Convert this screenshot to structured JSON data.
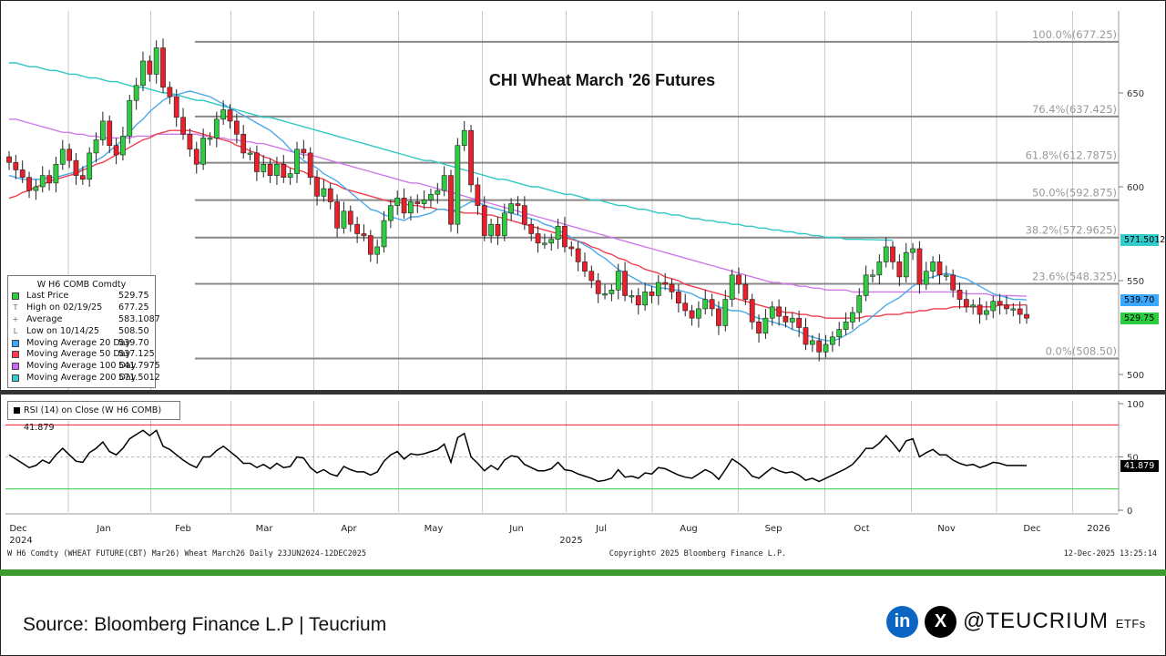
{
  "chart_data": {
    "type": "candlestick",
    "title": "CHI Wheat March '26 Futures",
    "security": "W H6 Comdty",
    "y_ticks": [
      500,
      550,
      600,
      650
    ],
    "ylim": [
      492,
      700
    ],
    "x_months": [
      "Dec",
      "Jan",
      "Feb",
      "Mar",
      "Apr",
      "May",
      "Jun",
      "Jul",
      "Aug",
      "Sep",
      "Oct",
      "Nov",
      "Dec",
      "2026"
    ],
    "x_years": [
      "2024",
      "2025"
    ],
    "fib_levels": [
      {
        "label": "100.0%(677.25)",
        "value": 677.25
      },
      {
        "label": "76.4%(637.425)",
        "value": 637.425
      },
      {
        "label": "61.8%(612.7875)",
        "value": 612.7875
      },
      {
        "label": "50.0%(592.875)",
        "value": 592.875
      },
      {
        "label": "38.2%(572.9625)",
        "value": 572.9625
      },
      {
        "label": "23.6%(548.325)",
        "value": 548.325
      },
      {
        "label": "0.0%(508.50)",
        "value": 508.5
      }
    ],
    "closes": [
      613,
      609,
      605,
      598,
      600,
      606,
      602,
      612,
      620,
      614,
      606,
      604,
      618,
      625,
      635,
      622,
      617,
      627,
      646,
      654,
      667,
      660,
      674,
      653,
      648,
      637,
      628,
      620,
      612,
      626,
      626,
      636,
      641,
      635,
      628,
      618,
      618,
      608,
      612,
      606,
      612,
      605,
      607,
      620,
      618,
      605,
      595,
      599,
      592,
      578,
      587,
      580,
      575,
      574,
      564,
      568,
      582,
      590,
      594,
      586,
      592,
      591,
      593,
      596,
      598,
      606,
      580,
      622,
      630,
      601,
      590,
      574,
      580,
      574,
      586,
      591,
      590,
      580,
      575,
      570,
      570,
      572,
      579,
      568,
      567,
      560,
      555,
      550,
      543,
      543,
      545,
      555,
      542,
      542,
      537,
      544,
      542,
      549,
      548,
      544,
      538,
      534,
      530,
      535,
      540,
      535,
      526,
      540,
      553,
      548,
      540,
      528,
      522,
      530,
      536,
      531,
      528,
      530,
      525,
      516,
      518,
      512,
      516,
      520,
      524,
      528,
      533,
      542,
      553,
      553,
      560,
      568,
      560,
      552,
      565,
      567,
      548,
      555,
      560,
      553,
      553,
      545,
      540,
      536,
      537,
      532,
      534,
      539,
      537,
      535,
      535,
      532,
      530
    ],
    "ma20": [
      606,
      605,
      604,
      604,
      604,
      604,
      605,
      605,
      606,
      607,
      608,
      610,
      612,
      614,
      616,
      619,
      622,
      625,
      629,
      633,
      636,
      640,
      643,
      646,
      648,
      649,
      650,
      651,
      650,
      649,
      648,
      646,
      644,
      642,
      640,
      638,
      636,
      634,
      632,
      630,
      627,
      624,
      620,
      617,
      614,
      612,
      610,
      607,
      605,
      603,
      600,
      597,
      594,
      591,
      588,
      587,
      585,
      584,
      583,
      582,
      584,
      584,
      585,
      586,
      588,
      588,
      587,
      588,
      590,
      592,
      592,
      590,
      589,
      588,
      587,
      586,
      585,
      584,
      583,
      582,
      580,
      579,
      577,
      575,
      573,
      571,
      569,
      567,
      564,
      562,
      559,
      556,
      554,
      552,
      550,
      548,
      547,
      546,
      546,
      545,
      545,
      544,
      543,
      541,
      540,
      538,
      536,
      535,
      534,
      534,
      533,
      531,
      530,
      529,
      528,
      527,
      526,
      524,
      523,
      521,
      520,
      519,
      518,
      518,
      519,
      521,
      523,
      526,
      528,
      531,
      534,
      537,
      539,
      541,
      544,
      547,
      549,
      551,
      552,
      553,
      554,
      553,
      552,
      551,
      549,
      547,
      545,
      543,
      542,
      541,
      540,
      540,
      539.7
    ],
    "ma50": [
      594,
      595,
      597,
      598,
      600,
      601,
      603,
      604,
      605,
      606,
      607,
      609,
      610,
      612,
      613,
      615,
      617,
      619,
      621,
      623,
      625,
      626,
      628,
      629,
      630,
      630,
      630,
      630,
      629,
      628,
      627,
      626,
      625,
      624,
      622,
      621,
      619,
      618,
      616,
      615,
      613,
      612,
      610,
      609,
      608,
      606,
      605,
      604,
      602,
      601,
      599,
      598,
      597,
      596,
      595,
      594,
      593,
      592,
      592,
      591,
      590,
      590,
      589,
      589,
      588,
      588,
      587,
      587,
      586,
      586,
      586,
      585,
      585,
      584,
      583,
      582,
      581,
      580,
      579,
      578,
      577,
      576,
      575,
      573,
      572,
      571,
      570,
      568,
      567,
      565,
      564,
      562,
      561,
      559,
      558,
      556,
      555,
      554,
      552,
      551,
      550,
      548,
      547,
      546,
      545,
      544,
      543,
      542,
      541,
      540,
      539,
      538,
      537,
      536,
      535,
      534,
      533,
      533,
      532,
      532,
      531,
      531,
      530,
      530,
      530,
      530,
      530,
      530,
      531,
      531,
      531,
      532,
      532,
      532,
      533,
      533,
      534,
      534,
      535,
      535,
      535,
      536,
      536,
      536,
      536,
      536,
      536,
      536,
      537,
      537,
      537,
      537,
      537.1
    ],
    "ma100": [
      636,
      636,
      635,
      634,
      633,
      632,
      631,
      630,
      629,
      629,
      628,
      628,
      627,
      627,
      626,
      626,
      626,
      626,
      626,
      627,
      627,
      627,
      628,
      628,
      628,
      628,
      628,
      628,
      628,
      627,
      627,
      626,
      626,
      625,
      625,
      624,
      624,
      623,
      623,
      622,
      621,
      620,
      619,
      618,
      617,
      617,
      616,
      615,
      614,
      613,
      612,
      611,
      610,
      609,
      608,
      607,
      606,
      605,
      604,
      603,
      602,
      602,
      601,
      600,
      599,
      598,
      597,
      596,
      595,
      594,
      593,
      592,
      591,
      590,
      589,
      588,
      587,
      586,
      585,
      584,
      583,
      582,
      581,
      580,
      579,
      578,
      577,
      576,
      575,
      574,
      573,
      572,
      571,
      570,
      569,
      568,
      567,
      566,
      565,
      564,
      563,
      562,
      561,
      560,
      559,
      558,
      557,
      556,
      555,
      554,
      553,
      552,
      551,
      550,
      549,
      549,
      548,
      548,
      547,
      547,
      546,
      546,
      545,
      545,
      545,
      545,
      544,
      544,
      544,
      544,
      544,
      544,
      544,
      544,
      544,
      544,
      544,
      544,
      544,
      544,
      544,
      544,
      544,
      543,
      543,
      543,
      543,
      542,
      542,
      542,
      542,
      541.8,
      541.8
    ],
    "ma200": [
      666,
      666,
      665,
      664,
      664,
      663,
      662,
      662,
      661,
      660,
      660,
      659,
      658,
      658,
      657,
      656,
      656,
      655,
      654,
      653,
      653,
      652,
      651,
      650,
      650,
      649,
      648,
      647,
      646,
      646,
      645,
      644,
      643,
      642,
      641,
      640,
      639,
      638,
      637,
      637,
      636,
      635,
      634,
      633,
      632,
      631,
      630,
      629,
      628,
      627,
      626,
      625,
      624,
      623,
      622,
      621,
      620,
      619,
      618,
      617,
      616,
      615,
      614,
      614,
      613,
      612,
      611,
      610,
      609,
      608,
      607,
      606,
      605,
      604,
      604,
      603,
      602,
      601,
      600,
      600,
      599,
      598,
      597,
      596,
      596,
      595,
      594,
      593,
      593,
      592,
      591,
      590,
      590,
      589,
      588,
      588,
      587,
      586,
      586,
      585,
      585,
      584,
      583,
      583,
      582,
      582,
      581,
      581,
      580,
      580,
      579,
      579,
      578,
      578,
      577,
      577,
      576,
      576,
      575,
      575,
      574,
      574,
      573,
      573,
      573,
      572,
      572,
      572,
      571.9,
      571.8,
      571.7,
      571.6,
      571.5
    ],
    "rsi": [
      52,
      48,
      44,
      40,
      42,
      47,
      44,
      52,
      58,
      52,
      46,
      45,
      54,
      58,
      64,
      55,
      52,
      58,
      67,
      71,
      75,
      70,
      75,
      60,
      57,
      52,
      47,
      43,
      40,
      50,
      50,
      56,
      60,
      55,
      50,
      44,
      44,
      40,
      43,
      39,
      44,
      40,
      41,
      50,
      49,
      40,
      35,
      38,
      34,
      32,
      41,
      38,
      36,
      36,
      33,
      36,
      46,
      52,
      55,
      48,
      53,
      52,
      53,
      55,
      57,
      62,
      45,
      68,
      72,
      50,
      44,
      37,
      42,
      38,
      47,
      51,
      50,
      43,
      40,
      37,
      37,
      39,
      45,
      38,
      37,
      34,
      32,
      30,
      27,
      28,
      30,
      38,
      31,
      32,
      30,
      35,
      34,
      40,
      39,
      36,
      33,
      31,
      30,
      34,
      38,
      35,
      29,
      38,
      48,
      44,
      39,
      32,
      30,
      35,
      40,
      37,
      35,
      36,
      33,
      28,
      30,
      27,
      30,
      33,
      36,
      39,
      43,
      50,
      58,
      58,
      63,
      70,
      63,
      55,
      65,
      67,
      50,
      54,
      57,
      52,
      52,
      47,
      44,
      42,
      43,
      40,
      42,
      45,
      44,
      42,
      42,
      42,
      41.9
    ],
    "rsi_ylim": [
      0,
      100
    ],
    "rsi_ticks": [
      0,
      50,
      100
    ],
    "rsi_overbought": 80,
    "rsi_oversold": 20
  },
  "legend": {
    "title": "W H6 COMB Comdty",
    "rows": [
      {
        "icon": "square",
        "color": "#2ecc40",
        "label": "Last Price",
        "value": "529.75"
      },
      {
        "icon": "T",
        "color": "#666666",
        "label": "High on 02/19/25",
        "value": "677.25"
      },
      {
        "icon": "+",
        "color": "#666666",
        "label": "Average",
        "value": "583.1087"
      },
      {
        "icon": "L",
        "color": "#666666",
        "label": "Low on 10/14/25",
        "value": "508.50"
      },
      {
        "icon": "square",
        "color": "#3aa8ff",
        "label": "Moving Average 20 Day",
        "value": "539.70"
      },
      {
        "icon": "square",
        "color": "#ff3b4e",
        "label": "Moving Average 50 Day",
        "value": "537.125"
      },
      {
        "icon": "square",
        "color": "#cc66ff",
        "label": "Moving Average 100 Day",
        "value": "541.7975"
      },
      {
        "icon": "square",
        "color": "#33cccc",
        "label": "Moving Average 200 Day",
        "value": "571.5012"
      }
    ]
  },
  "rsi_label": "RSI (14)   on Close (W H6 COMB) 41.879",
  "price_tags": [
    {
      "text": "571.5012",
      "value": 571.5012,
      "bg": "#33cccc",
      "fg": "#000000"
    },
    {
      "text": "539.70",
      "value": 539.7,
      "bg": "#3aa8ff",
      "fg": "#000000"
    },
    {
      "text": "529.75",
      "value": 529.75,
      "bg": "#2ecc40",
      "fg": "#000000"
    }
  ],
  "rsi_tag": {
    "text": "41.879",
    "value": 41.879,
    "bg": "#000000",
    "fg": "#ffffff"
  },
  "bottom_info": {
    "left": "W H6 Comdty  (WHEAT FUTURE(CBT) Mar26) Wheat March26 Daily 23JUN2024-12DEC2025",
    "center": "Copyright© 2025 Bloomberg Finance L.P.",
    "right": "12-Dec-2025  13:25:14"
  },
  "colors": {
    "up": "#2ecc40",
    "down": "#e8202c",
    "ma20": "#4aa8e8",
    "ma50": "#ee3f4f",
    "ma100": "#d07ae8",
    "ma200": "#30c8c4",
    "fib": "#888888",
    "accent_bar": "#3c9b2c"
  },
  "footer": {
    "source": "Source: Bloomberg Finance L.P | Teucrium",
    "linkedin": "in",
    "x": "X",
    "brand": "@TEUCRIUM",
    "brand_suffix": "ETFs"
  }
}
